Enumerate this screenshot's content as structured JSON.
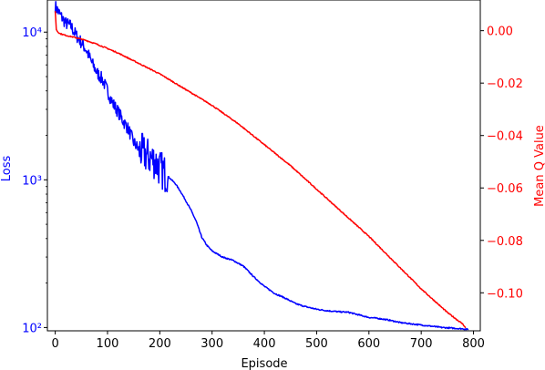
{
  "chart_data": {
    "type": "line",
    "title": "",
    "xlabel": "Episode",
    "xlim": [
      -15,
      813
    ],
    "x_ticks": [
      0,
      100,
      200,
      300,
      400,
      500,
      600,
      700,
      800
    ],
    "x_tick_labels": [
      "0",
      "100",
      "200",
      "300",
      "400",
      "500",
      "600",
      "700",
      "800"
    ],
    "grid": false,
    "legend": "none",
    "left_axis": {
      "label": "Loss",
      "color": "#0000ff",
      "scale": "log",
      "ylim": [
        95,
        16500
      ],
      "ticks": [
        100,
        1000,
        10000
      ],
      "tick_labels": [
        "10²",
        "10³",
        "10⁴"
      ]
    },
    "right_axis": {
      "label": "Mean Q Value",
      "color": "#ff0000",
      "scale": "linear",
      "ylim": [
        -0.1145,
        0.0117
      ],
      "ticks": [
        0.0,
        -0.02,
        -0.04,
        -0.06,
        -0.08,
        -0.1
      ],
      "tick_labels": [
        "0.00",
        "−0.02",
        "−0.04",
        "−0.06",
        "−0.08",
        "−0.10"
      ]
    },
    "series": [
      {
        "axis": "left",
        "color": "#0000ff",
        "noisy_until": 215,
        "x": [
          0,
          10,
          20,
          30,
          40,
          50,
          60,
          70,
          80,
          90,
          100,
          110,
          120,
          130,
          140,
          150,
          160,
          170,
          180,
          190,
          200,
          210,
          220,
          230,
          240,
          250,
          260,
          270,
          280,
          290,
          300,
          320,
          340,
          360,
          380,
          400,
          420,
          440,
          460,
          480,
          500,
          520,
          540,
          560,
          580,
          600,
          620,
          640,
          660,
          680,
          700,
          720,
          740,
          760,
          780,
          790
        ],
        "y": [
          15000,
          13000,
          11500,
          11000,
          9500,
          8500,
          7500,
          6200,
          5300,
          4800,
          4000,
          3300,
          2900,
          2500,
          2200,
          1800,
          1600,
          1500,
          1420,
          1350,
          1200,
          1100,
          1020,
          940,
          830,
          720,
          620,
          520,
          410,
          360,
          330,
          300,
          285,
          260,
          220,
          190,
          170,
          158,
          145,
          138,
          133,
          130,
          128,
          127,
          122,
          117,
          115,
          112,
          108,
          106,
          104,
          102,
          100,
          99,
          98,
          97
        ]
      },
      {
        "axis": "right",
        "color": "#ff0000",
        "x": [
          0,
          2,
          5,
          10,
          20,
          40,
          60,
          80,
          100,
          120,
          150,
          200,
          250,
          300,
          350,
          400,
          450,
          500,
          550,
          600,
          650,
          700,
          750,
          770,
          780,
          785
        ],
        "y": [
          0.0075,
          0.0005,
          -0.0005,
          -0.0012,
          -0.0018,
          -0.0027,
          -0.0038,
          -0.0052,
          -0.0068,
          -0.0085,
          -0.0115,
          -0.0165,
          -0.0225,
          -0.0285,
          -0.0355,
          -0.0435,
          -0.0515,
          -0.0605,
          -0.0695,
          -0.0785,
          -0.0885,
          -0.0985,
          -0.1075,
          -0.1105,
          -0.112,
          -0.1135
        ]
      }
    ]
  }
}
